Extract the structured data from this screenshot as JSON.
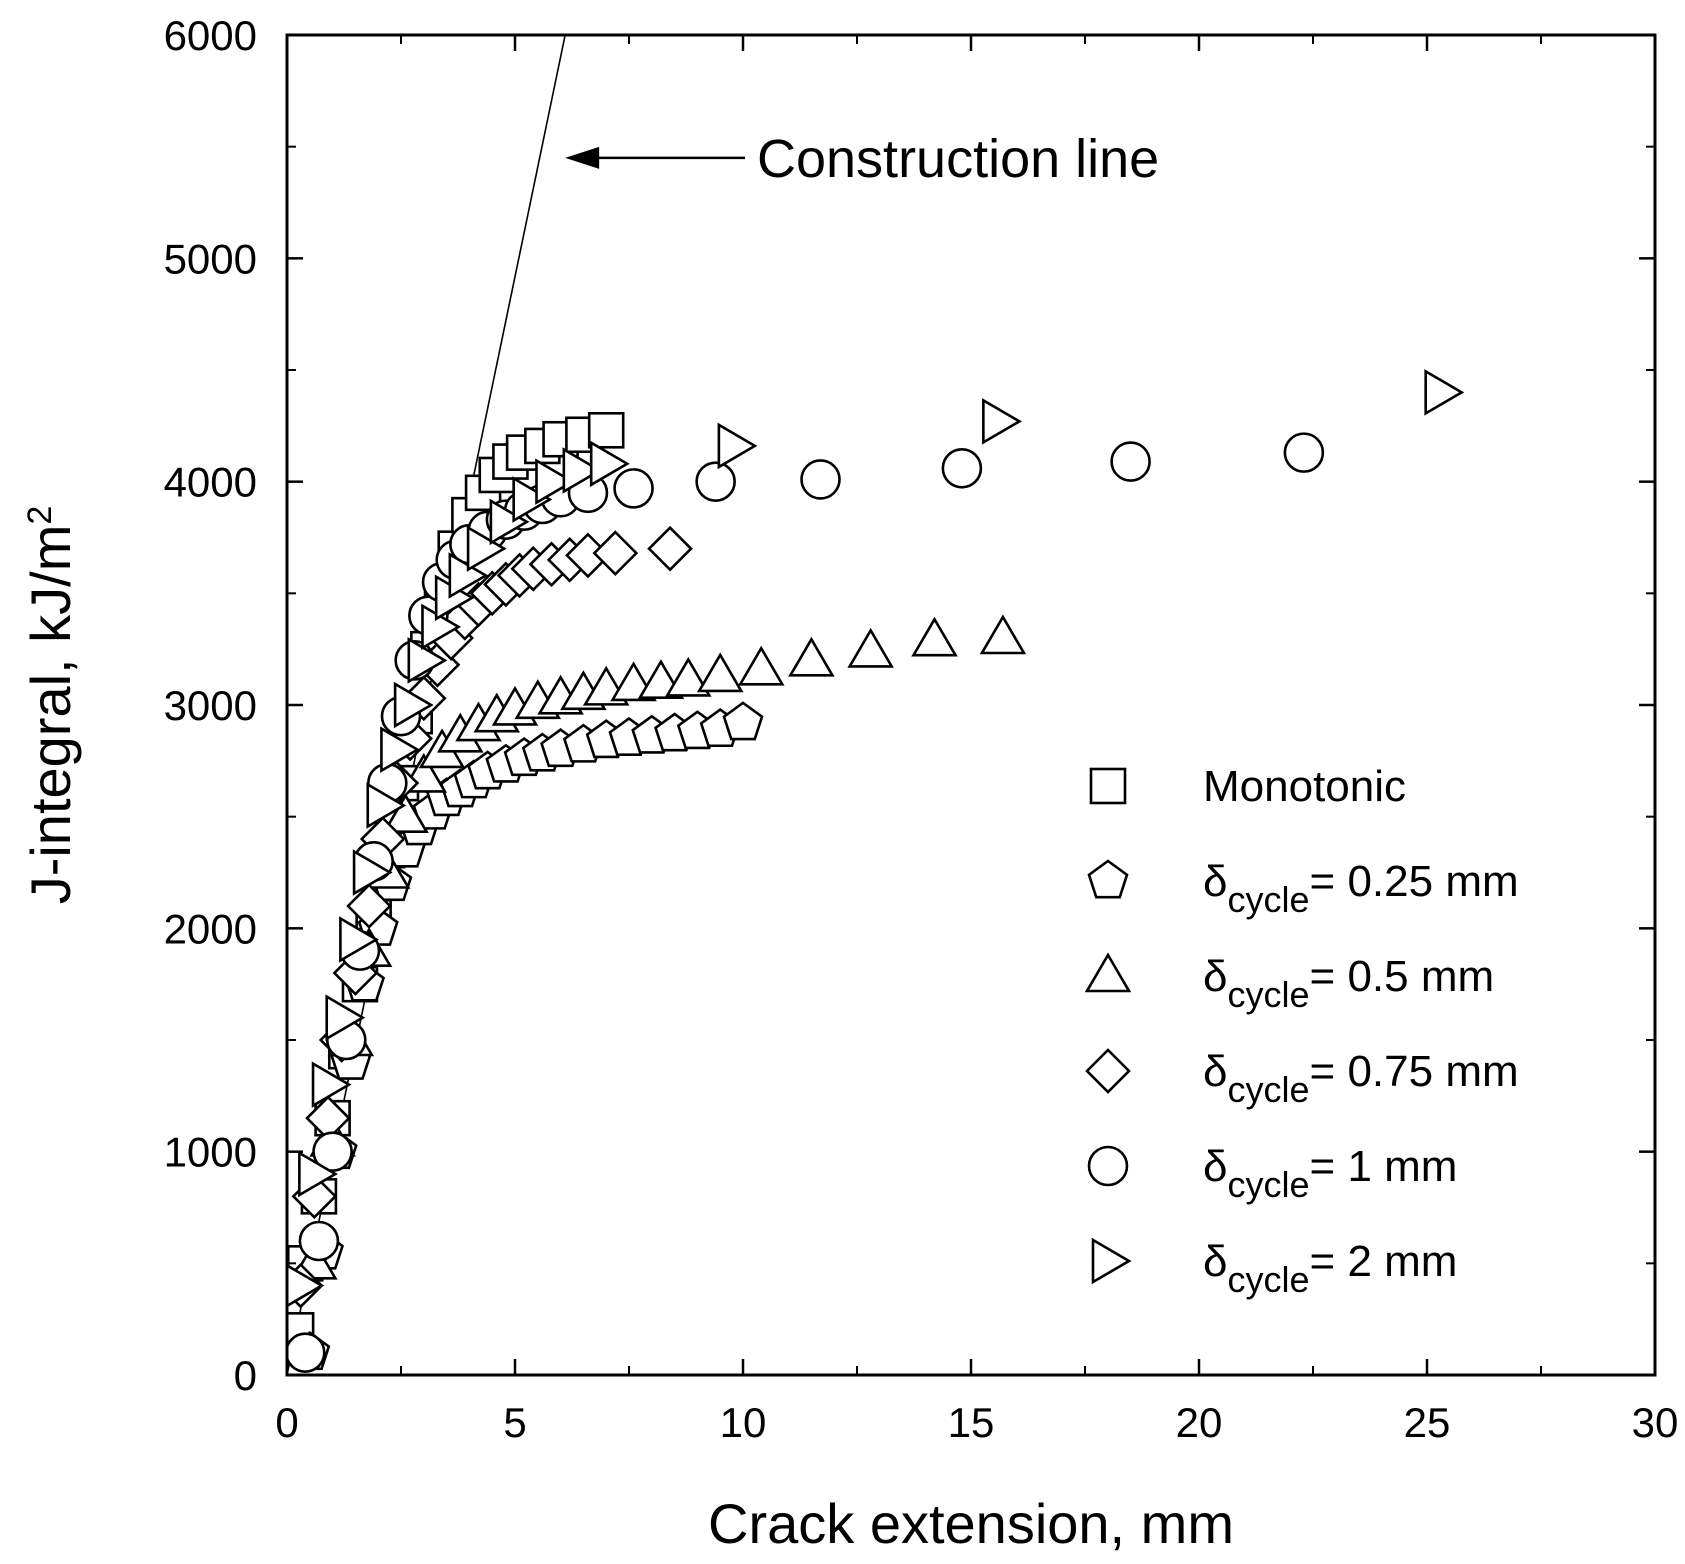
{
  "chart_data": {
    "type": "scatter",
    "title": "",
    "xlabel": "Crack extension, mm",
    "ylabel": {
      "main": "J-integral, kJ/m",
      "superscript": "2"
    },
    "xlim": [
      0,
      30
    ],
    "ylim": [
      0,
      6000
    ],
    "x_ticks": [
      "0",
      "5",
      "10",
      "15",
      "20",
      "25",
      "30"
    ],
    "y_ticks": [
      "0",
      "1000",
      "2000",
      "3000",
      "4000",
      "5000",
      "6000"
    ],
    "grid": false,
    "legend_position": "lower-right",
    "annotation": {
      "text": "Construction line",
      "arrow_to": [
        6.1,
        5450
      ]
    },
    "construction_line": {
      "x": [
        0,
        6.1
      ],
      "y": [
        0,
        6000
      ]
    },
    "series": [
      {
        "name": "Monotonic",
        "legend": {
          "main": "Monotonic",
          "sub": "",
          "rest": ""
        },
        "marker": "square",
        "x": [
          0.2,
          0.4,
          0.7,
          1.0,
          1.3,
          1.6,
          1.9,
          2.2,
          2.5,
          2.8,
          3.1,
          3.4,
          3.7,
          4.0,
          4.3,
          4.6,
          4.9,
          5.2,
          5.6,
          6.0,
          6.5,
          7.0
        ],
        "y": [
          200,
          500,
          800,
          1150,
          1450,
          1750,
          2050,
          2350,
          2650,
          2950,
          3250,
          3500,
          3700,
          3850,
          3950,
          4030,
          4090,
          4130,
          4160,
          4190,
          4210,
          4230
        ]
      },
      {
        "name": "δcycle= 0.25 mm",
        "legend": {
          "main": "δ",
          "sub": "cycle",
          "rest": "= 0.25 mm"
        },
        "marker": "pentagon",
        "x": [
          0.5,
          0.8,
          1.1,
          1.4,
          1.7,
          2.0,
          2.3,
          2.6,
          2.9,
          3.2,
          3.5,
          3.8,
          4.1,
          4.4,
          4.8,
          5.2,
          5.6,
          6.0,
          6.5,
          7.0,
          7.5,
          8.0,
          8.5,
          9.0,
          9.5,
          10.0
        ],
        "y": [
          100,
          550,
          1000,
          1400,
          1750,
          2000,
          2200,
          2350,
          2450,
          2520,
          2580,
          2620,
          2660,
          2700,
          2730,
          2760,
          2780,
          2800,
          2820,
          2840,
          2850,
          2860,
          2870,
          2880,
          2890,
          2920
        ]
      },
      {
        "name": "δcycle= 0.5 mm",
        "legend": {
          "main": "δ",
          "sub": "cycle",
          "rest": "= 0.5 mm"
        },
        "marker": "triangle-up",
        "x": [
          0.6,
          1.0,
          1.4,
          1.8,
          2.2,
          2.6,
          3.0,
          3.4,
          3.8,
          4.2,
          4.6,
          5.0,
          5.5,
          6.0,
          6.5,
          7.0,
          7.6,
          8.2,
          8.8,
          9.5,
          10.4,
          11.5,
          12.8,
          14.2,
          15.7
        ],
        "y": [
          500,
          1050,
          1500,
          1900,
          2250,
          2500,
          2680,
          2790,
          2860,
          2910,
          2950,
          2980,
          3010,
          3030,
          3050,
          3070,
          3090,
          3100,
          3110,
          3130,
          3160,
          3200,
          3240,
          3290,
          3300
        ]
      },
      {
        "name": "δcycle= 0.75 mm",
        "legend": {
          "main": "δ",
          "sub": "cycle",
          "rest": "= 0.75 mm"
        },
        "marker": "diamond",
        "x": [
          0.3,
          0.6,
          0.9,
          1.2,
          1.5,
          1.8,
          2.1,
          2.4,
          2.7,
          3.0,
          3.3,
          3.6,
          3.9,
          4.2,
          4.5,
          4.8,
          5.1,
          5.4,
          5.8,
          6.2,
          6.6,
          7.2,
          8.4
        ],
        "y": [
          400,
          800,
          1150,
          1500,
          1800,
          2100,
          2400,
          2650,
          2850,
          3030,
          3180,
          3300,
          3390,
          3450,
          3500,
          3540,
          3580,
          3610,
          3630,
          3650,
          3670,
          3680,
          3700
        ]
      },
      {
        "name": "δcycle= 1 mm",
        "legend": {
          "main": "δ",
          "sub": "cycle",
          "rest": "= 1 mm"
        },
        "marker": "circle",
        "x": [
          0.4,
          0.7,
          1.0,
          1.3,
          1.6,
          1.9,
          2.2,
          2.5,
          2.8,
          3.1,
          3.4,
          3.7,
          4.0,
          4.4,
          4.8,
          5.2,
          5.6,
          6.0,
          6.6,
          7.6,
          9.4,
          11.7,
          14.8,
          18.5,
          22.3
        ],
        "y": [
          100,
          600,
          1000,
          1500,
          1900,
          2300,
          2650,
          2950,
          3200,
          3400,
          3550,
          3650,
          3720,
          3780,
          3830,
          3870,
          3900,
          3930,
          3950,
          3970,
          4000,
          4010,
          4060,
          4090,
          4130
        ]
      },
      {
        "name": "δcycle= 2 mm",
        "legend": {
          "main": "δ",
          "sub": "cycle",
          "rest": "= 2 mm"
        },
        "marker": "triangle-right",
        "x": [
          0.3,
          0.6,
          0.9,
          1.2,
          1.5,
          1.8,
          2.1,
          2.4,
          2.7,
          3.0,
          3.3,
          3.6,
          3.9,
          4.3,
          4.8,
          5.3,
          5.8,
          6.4,
          7.0,
          9.8,
          15.6,
          25.3
        ],
        "y": [
          400,
          900,
          1300,
          1600,
          1950,
          2250,
          2550,
          2800,
          3000,
          3200,
          3350,
          3480,
          3580,
          3700,
          3820,
          3920,
          4000,
          4050,
          4080,
          4160,
          4270,
          4400
        ]
      }
    ]
  }
}
